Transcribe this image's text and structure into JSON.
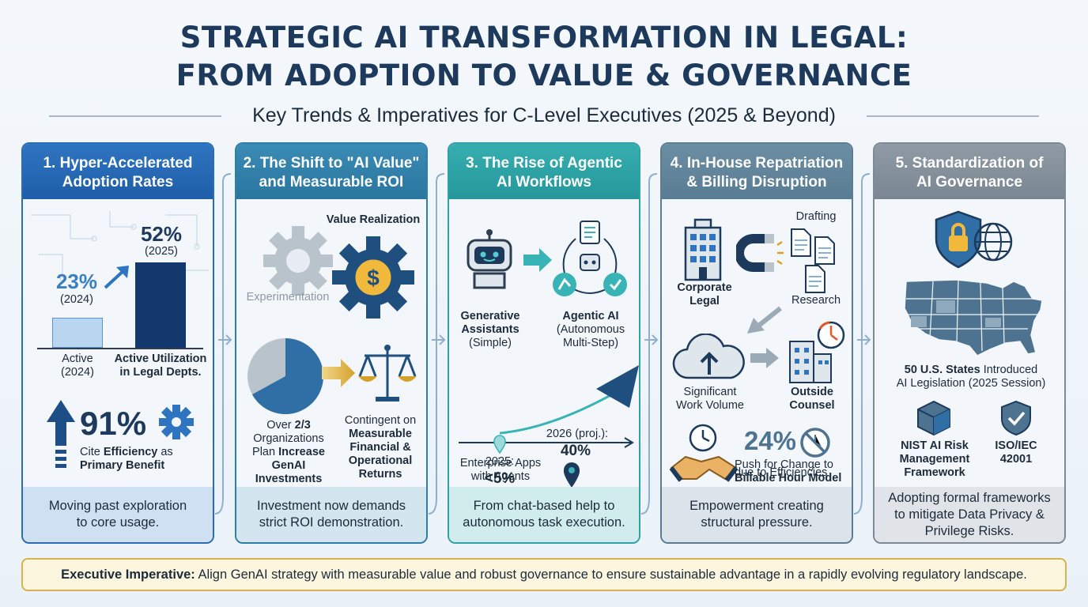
{
  "header": {
    "title_line1": "STRATEGIC AI TRANSFORMATION IN LEGAL:",
    "title_line2": "FROM ADOPTION TO VALUE & GOVERNANCE",
    "subtitle": "Key Trends & Imperatives for C-Level Executives (2025 & Beyond)"
  },
  "colors": {
    "navy": "#1d3a5c",
    "card1": "#2a6db5",
    "card2": "#2c7fa8",
    "card3": "#2ea2a6",
    "card4": "#5b7d94",
    "card5": "#7d8a95",
    "gold": "#d8b24a"
  },
  "cards": [
    {
      "title_line1": "1. Hyper-Accelerated",
      "title_line2": "Adoption Rates",
      "stat_2025": "52%",
      "label_2025": "(2025)",
      "stat_2024": "23%",
      "label_2024": "(2024)",
      "bar_value_2024": 23,
      "bar_value_2025": 52,
      "axis_label_left_1": "Active",
      "axis_label_left_2": "(2024)",
      "axis_label_right_1": "Active Utilization",
      "axis_label_right_2": "in Legal Depts.",
      "efficiency_stat": "91%",
      "efficiency_text_1": "Cite ",
      "efficiency_text_bold": "Efficiency",
      "efficiency_text_2": " as",
      "efficiency_text_3": "Primary Benefit",
      "footer_line1": "Moving past exploration",
      "footer_line2": "to core usage.",
      "icons": [
        "up-arrow-icon",
        "gear-icon",
        "circuit-background-icon"
      ]
    },
    {
      "title_line1": "2. The Shift to \"AI Value\"",
      "title_line2": "and Measurable ROI",
      "value_label": "Value Realization",
      "experiment_label": "Experimentation",
      "pie_text_1": "Over ",
      "pie_text_bold1": "2/3",
      "pie_text_2": "Organizations",
      "pie_text_3": "Plan ",
      "pie_text_bold2": "Increase",
      "pie_text_bold3": "GenAI",
      "pie_text_bold4": "Investments",
      "pie_share": 0.67,
      "contingent_1": "Contingent on",
      "contingent_bold1": "Measurable",
      "contingent_bold2": "Financial &",
      "contingent_bold3": "Operational",
      "contingent_bold4": "Returns",
      "footer_line1": "Investment now demands",
      "footer_line2": "strict ROI demonstration.",
      "icons": [
        "gear-icon",
        "dollar-gear-icon",
        "pie-chart-icon",
        "arrow-right-icon",
        "scales-icon"
      ]
    },
    {
      "title_line1": "3. The Rise of Agentic",
      "title_line2": "AI Workflows",
      "gen_bold1": "Generative",
      "gen_bold2": "Assistants",
      "gen_sub": "(Simple)",
      "agentic_bold": "Agentic AI",
      "agentic_sub1": "(Autonomous",
      "agentic_sub2": "Multi-Step)",
      "proj_label": "2026 (proj.):",
      "proj_value": "40%",
      "current_label": "2025:",
      "current_value": "<5%",
      "enterprise_1": "Enterprise Apps",
      "enterprise_2": "with Agents",
      "footer_line1": "From chat-based help to",
      "footer_line2": "autonomous task execution.",
      "icons": [
        "robot-icon",
        "arrow-right-icon",
        "workflow-cycle-icon",
        "growth-arrow-icon",
        "location-pin-icon"
      ]
    },
    {
      "title_line1": "4. In-House Repatriation",
      "title_line2": "& Billing Disruption",
      "drafting": "Drafting",
      "research": "Research",
      "corporate_1": "Corporate",
      "corporate_2": "Legal",
      "significant_1": "Significant",
      "significant_2": "Work Volume",
      "outside_1": "Outside",
      "outside_2": "Counsel",
      "billing_stat": "24%",
      "billing_1": "Push for Change to",
      "billing_bold": "Billable Hour Model",
      "billing_2": "due to Efficiencies",
      "footer_line1": "Empowerment creating",
      "footer_line2": "structural pressure.",
      "icons": [
        "building-icon",
        "magnet-icon",
        "document-icon",
        "cloud-upload-icon",
        "stopwatch-icon",
        "clock-icon",
        "handshake-icon",
        "no-entry-icon"
      ]
    },
    {
      "title_line1": "5. Standardization of",
      "title_line2": "AI Governance",
      "states_bold": "50 U.S. States",
      "states_text": " Introduced",
      "states_text_2": "AI Legislation (2025 Session)",
      "nist_1": "NIST AI Risk",
      "nist_2": "Management",
      "nist_3": "Framework",
      "iso_1": "ISO/IEC",
      "iso_2": "42001",
      "footer_line1": "Adopting formal frameworks",
      "footer_line2": "to mitigate Data Privacy &",
      "footer_line3": "Privilege Risks.",
      "icons": [
        "shield-lock-icon",
        "globe-icon",
        "us-map-icon",
        "cube-icon",
        "shield-check-icon"
      ]
    }
  ],
  "imperative": {
    "label": "Executive Imperative:",
    "text": " Align GenAI strategy with measurable value and robust governance to ensure sustainable advantage in a rapidly evolving regulatory landscape."
  }
}
